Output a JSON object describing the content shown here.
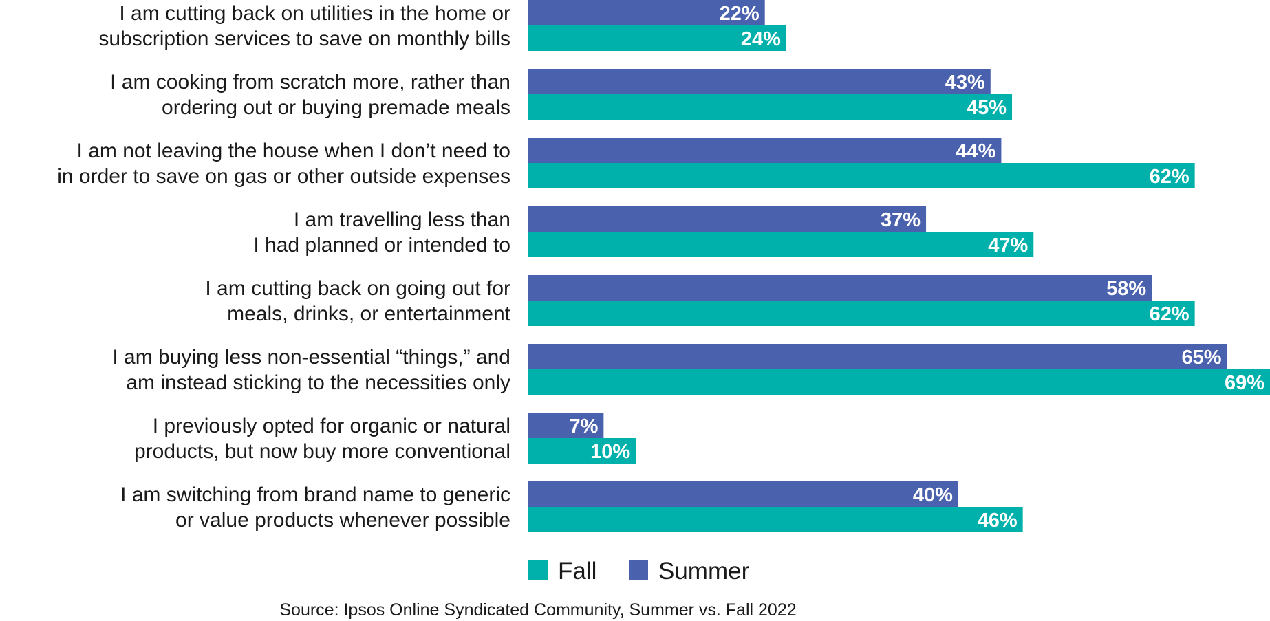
{
  "chart_data": {
    "type": "bar",
    "orientation": "horizontal",
    "categories": [
      [
        "I am cutting back on utilities in the home or",
        "subscription services to save on monthly bills"
      ],
      [
        "I am cooking from scratch more, rather than",
        "ordering out or buying premade meals"
      ],
      [
        "I am not leaving the house when I don’t need to",
        "in order to save on gas or other outside expenses"
      ],
      [
        "I am travelling less than",
        "I had planned or intended to"
      ],
      [
        "I am cutting back on going out for",
        "meals, drinks, or entertainment"
      ],
      [
        "I am buying less non-essential “things,” and",
        "am instead sticking to the necessities only"
      ],
      [
        "I previously opted for organic or natural",
        "products, but now buy more conventional"
      ],
      [
        "I am switching from brand name to generic",
        "or value products whenever possible"
      ]
    ],
    "series": [
      {
        "name": "Summer",
        "color": "#4a61ae",
        "values": [
          22,
          43,
          44,
          37,
          58,
          65,
          7,
          40
        ],
        "labels": [
          "22%",
          "43%",
          "44%",
          "37%",
          "58%",
          "65%",
          "7%",
          "40%"
        ]
      },
      {
        "name": "Fall",
        "color": "#00b0aa",
        "values": [
          24,
          45,
          62,
          47,
          62,
          69,
          10,
          46
        ],
        "labels": [
          "24%",
          "45%",
          "62%",
          "47%",
          "62%",
          "69%",
          "10%",
          "46%"
        ]
      }
    ],
    "legend": [
      {
        "name": "Fall",
        "color": "#00b0aa"
      },
      {
        "name": "Summer",
        "color": "#4a61ae"
      }
    ],
    "value_format": "percent",
    "xlim": [
      0,
      69
    ],
    "source": "Source: Ipsos Online Syndicated Community, Summer vs. Fall 2022"
  }
}
